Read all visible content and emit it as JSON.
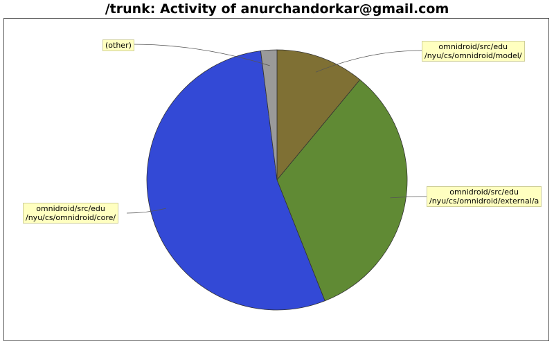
{
  "chart_data": {
    "type": "pie",
    "title": "/trunk: Activity of anurchandorkar@gmail.com",
    "slices": [
      {
        "label_line1": "omnidroid/src/edu",
        "label_line2": "/nyu/cs/omnidroid/model/",
        "value": 11,
        "color": "#7f7034"
      },
      {
        "label_line1": "omnidroid/src/edu",
        "label_line2": "/nyu/cs/omnidroid/external/a",
        "value": 33,
        "color": "#608a34"
      },
      {
        "label_line1": "omnidroid/src/edu",
        "label_line2": "/nyu/cs/omnidroid/core/",
        "value": 54,
        "color": "#3349d6"
      },
      {
        "label_line1": "(other)",
        "label_line2": "",
        "value": 2,
        "color": "#9a9a9a"
      }
    ],
    "legend": "none"
  }
}
